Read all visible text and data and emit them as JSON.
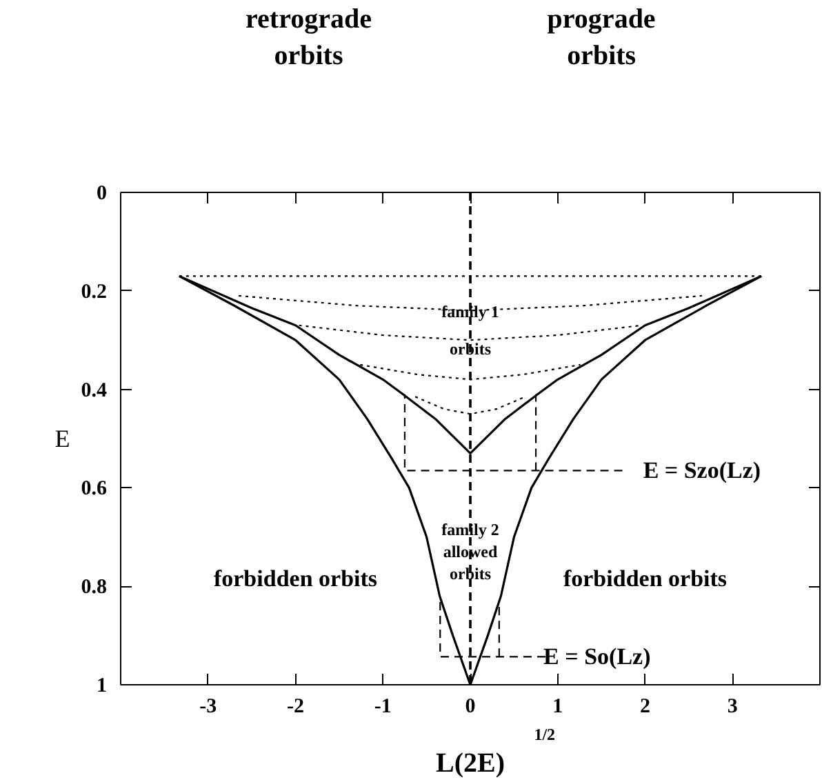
{
  "chart_data": {
    "type": "line",
    "xlabel": "L(2E)",
    "ylabel": "E",
    "xlim": [
      -4,
      4
    ],
    "ylim": [
      1,
      0
    ],
    "xticks": [
      -3,
      -2,
      -1,
      0,
      1,
      2,
      3
    ],
    "yticks": [
      0,
      0.2,
      0.4,
      0.6,
      0.8,
      1
    ],
    "grid": false,
    "series": [
      {
        "color": "#000000",
        "line_style": "solid",
        "x": [
          -3.33,
          -2.7,
          -2.0,
          -1.5,
          -1.18,
          -0.9,
          -0.7,
          -0.5,
          -0.35,
          -0.2,
          0,
          0.2,
          0.35,
          0.5,
          0.7,
          0.9,
          1.18,
          1.5,
          2.0,
          2.7,
          3.33
        ],
        "values": [
          0.17,
          0.23,
          0.3,
          0.38,
          0.46,
          0.54,
          0.6,
          0.7,
          0.82,
          0.9,
          1.0,
          0.9,
          0.82,
          0.7,
          0.6,
          0.54,
          0.46,
          0.38,
          0.3,
          0.23,
          0.17
        ]
      },
      {
        "color": "#000000",
        "line_style": "solid",
        "x": [
          -3.33,
          -2.5,
          -2.0,
          -1.5,
          -1.0,
          -0.77,
          -0.4,
          0,
          0.4,
          0.77,
          1.0,
          1.5,
          2.0,
          2.5,
          3.33
        ],
        "values": [
          0.17,
          0.235,
          0.27,
          0.33,
          0.38,
          0.41,
          0.46,
          0.53,
          0.46,
          0.41,
          0.38,
          0.33,
          0.27,
          0.235,
          0.17
        ]
      },
      {
        "color": "#000000",
        "line_style": "dotted",
        "x": [
          -3.33,
          3.33
        ],
        "values": [
          0.17,
          0.17
        ]
      },
      {
        "color": "#000000",
        "line_style": "dotted",
        "x": [
          -2.65,
          -1.3,
          0,
          1.3,
          2.65
        ],
        "values": [
          0.21,
          0.23,
          0.24,
          0.23,
          0.21
        ]
      },
      {
        "color": "#000000",
        "line_style": "dotted",
        "x": [
          -1.96,
          -1.0,
          0,
          1.0,
          1.96
        ],
        "values": [
          0.27,
          0.29,
          0.3,
          0.29,
          0.27
        ]
      },
      {
        "color": "#000000",
        "line_style": "dotted",
        "x": [
          -1.26,
          -0.6,
          0,
          0.6,
          1.26
        ],
        "values": [
          0.35,
          0.37,
          0.38,
          0.37,
          0.35
        ]
      },
      {
        "color": "#000000",
        "line_style": "dotted",
        "x": [
          -0.63,
          -0.3,
          0,
          0.3,
          0.63
        ],
        "values": [
          0.415,
          0.44,
          0.45,
          0.44,
          0.415
        ]
      },
      {
        "color": "#000000",
        "line_style": "dashed",
        "x": [
          1.74,
          -0.75,
          -0.75
        ],
        "values": [
          0.565,
          0.565,
          0.41
        ]
      },
      {
        "color": "#000000",
        "line_style": "dashed",
        "x": [
          0.75,
          0.75
        ],
        "values": [
          0.565,
          0.41
        ]
      },
      {
        "color": "#000000",
        "line_style": "dashed",
        "x": [
          0.86,
          -0.345,
          -0.345
        ],
        "values": [
          0.943,
          0.943,
          0.83
        ]
      },
      {
        "color": "#000000",
        "line_style": "dashed",
        "x": [
          0.33,
          0.33
        ],
        "values": [
          0.943,
          0.83
        ]
      }
    ],
    "ref_lines": [
      {
        "axis": "x",
        "value": 0,
        "color": "#000000",
        "line_style": "dashed"
      }
    ],
    "annotations": [
      "retrograde\norbits",
      "prograde\norbits",
      "family 1\norbits",
      "E = Szo(Lz)",
      "family 2\nallowed\norbits",
      "forbidden orbits",
      "forbidden orbits",
      "E = So(Lz)",
      "1/2"
    ]
  }
}
